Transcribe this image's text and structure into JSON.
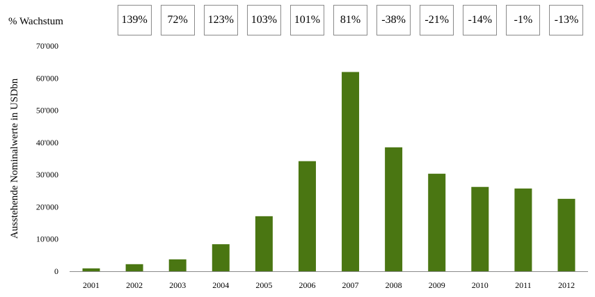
{
  "growth_row": {
    "label": "% Wachstum",
    "values": [
      "139%",
      "72%",
      "123%",
      "103%",
      "101%",
      "81%",
      "-38%",
      "-21%",
      "-14%",
      "-1%",
      "-13%"
    ]
  },
  "chart_data": {
    "type": "bar",
    "categories": [
      "2001",
      "2002",
      "2003",
      "2004",
      "2005",
      "2006",
      "2007",
      "2008",
      "2009",
      "2010",
      "2011",
      "2012"
    ],
    "values": [
      900,
      2200,
      3700,
      8400,
      17100,
      34200,
      61900,
      38500,
      30300,
      26200,
      25700,
      22500
    ],
    "ylabel": "Ausstehende Nominalwerte in USDbn",
    "ylim": [
      0,
      70000
    ],
    "yticks": [
      0,
      10000,
      20000,
      30000,
      40000,
      50000,
      60000,
      70000
    ],
    "ytick_labels": [
      "0",
      "10'000",
      "20'000",
      "30'000",
      "40'000",
      "50'000",
      "60'000",
      "70'000"
    ],
    "grid": false,
    "bar_color": "#4a7612"
  }
}
